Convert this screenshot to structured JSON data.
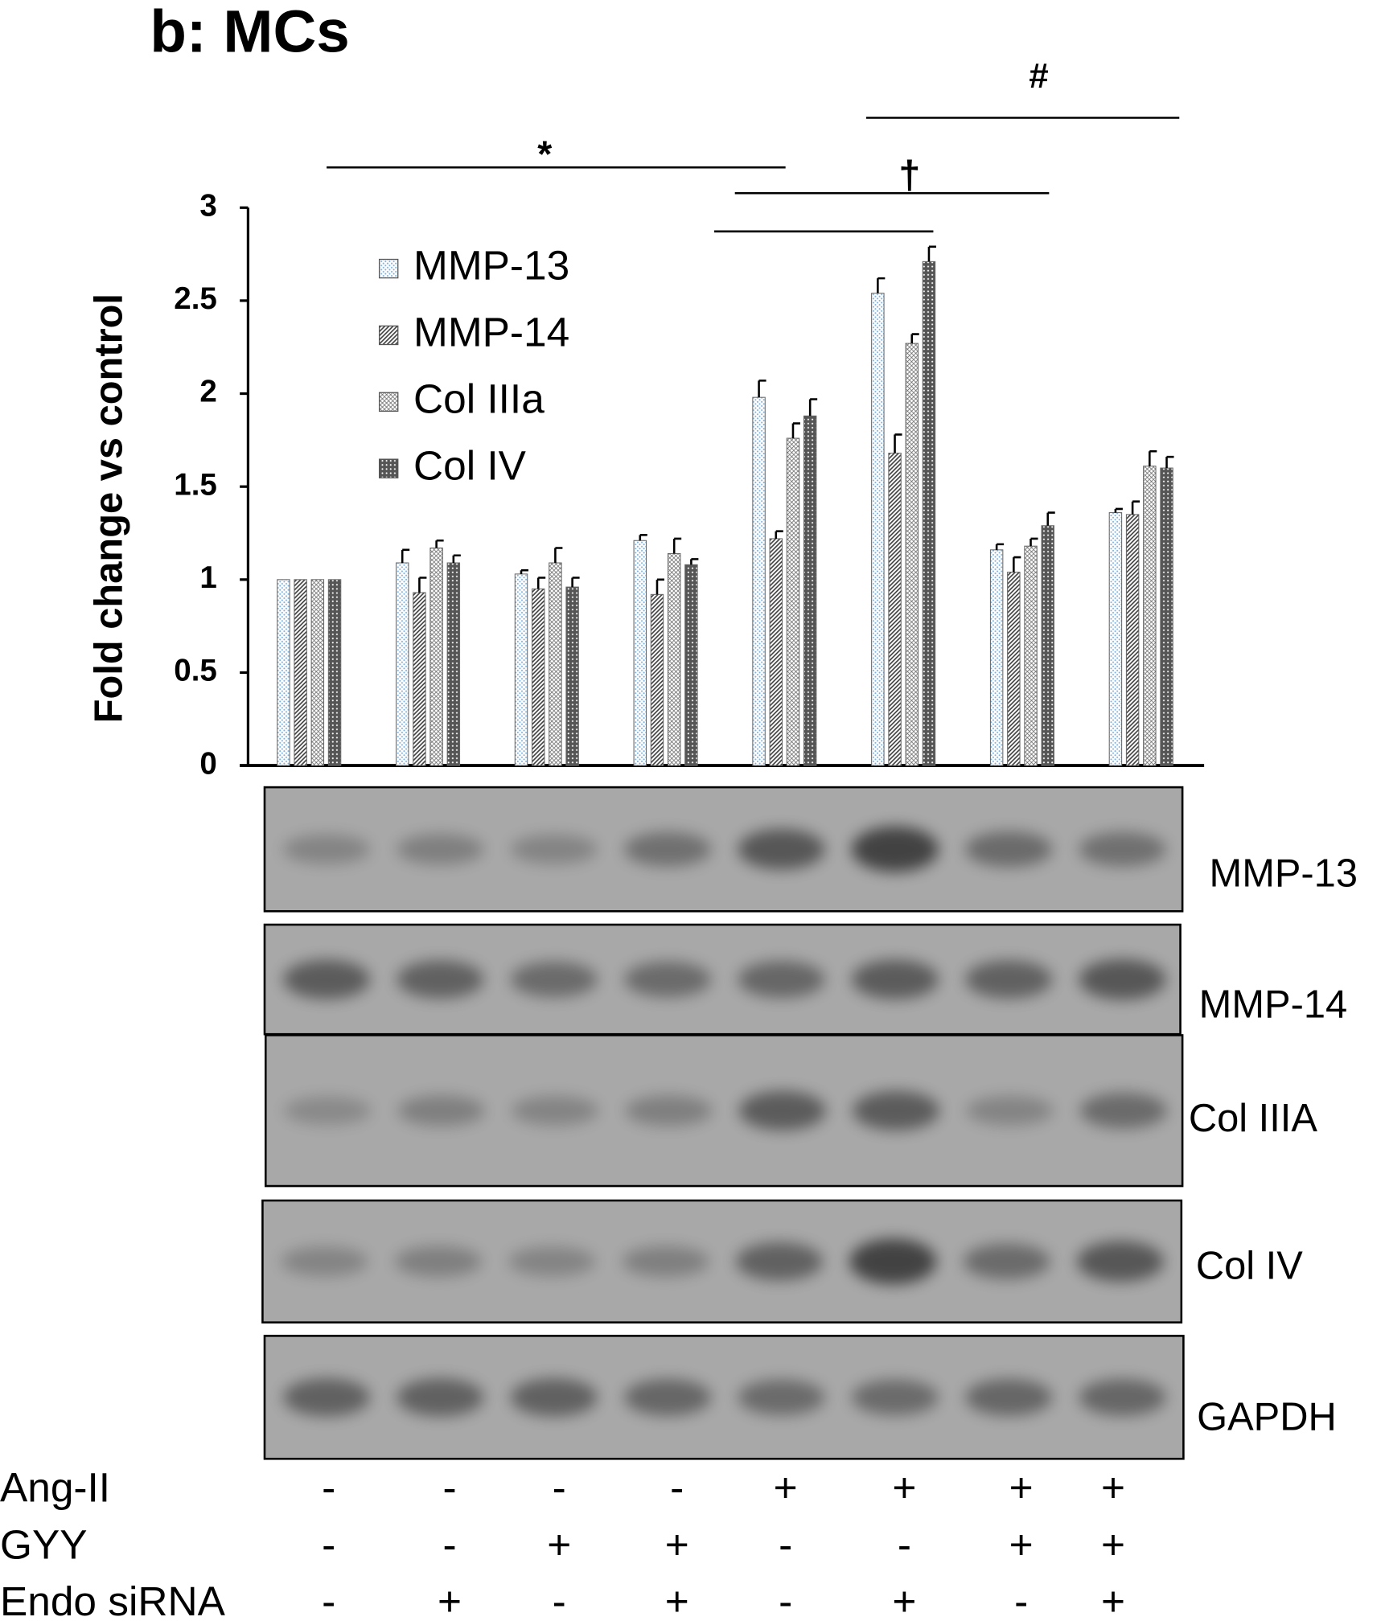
{
  "chart_data": {
    "type": "bar",
    "title": "b: MCs",
    "y_label": "Fold change vs control",
    "categories": [
      null,
      null,
      null,
      null,
      null,
      null,
      null,
      null
    ],
    "ylim": [
      0,
      3
    ],
    "yticks": [
      0,
      0.5,
      1,
      1.5,
      2,
      2.5,
      3
    ],
    "series": [
      {
        "name": "MMP-13",
        "color": "#7fb0dc",
        "pattern": "dots",
        "values": [
          1,
          1.09,
          1.03,
          1.21,
          1.98,
          2.54,
          1.16,
          1.36
        ],
        "errors": [
          0,
          0.07,
          0.02,
          0.03,
          0.09,
          0.08,
          0.03,
          0.02
        ]
      },
      {
        "name": "MMP-14",
        "color": "#404040",
        "pattern": "hatch",
        "values": [
          1,
          0.93,
          0.95,
          0.92,
          1.22,
          1.68,
          1.04,
          1.35
        ],
        "errors": [
          0,
          0.08,
          0.06,
          0.08,
          0.04,
          0.1,
          0.08,
          0.07
        ]
      },
      {
        "name": "Col IIIa",
        "color": "#707070",
        "pattern": "cross",
        "values": [
          1,
          1.17,
          1.09,
          1.14,
          1.76,
          2.27,
          1.18,
          1.61
        ],
        "errors": [
          0,
          0.04,
          0.08,
          0.08,
          0.08,
          0.05,
          0.04,
          0.08
        ]
      },
      {
        "name": "Col IV",
        "color": "#555555",
        "pattern": "dark-dots",
        "values": [
          1,
          1.09,
          0.96,
          1.08,
          1.88,
          2.71,
          1.29,
          1.6
        ],
        "errors": [
          0,
          0.04,
          0.05,
          0.03,
          0.09,
          0.08,
          0.07,
          0.06
        ]
      }
    ],
    "annotations": [
      "*",
      "†",
      "#"
    ],
    "blot_labels": [
      "MMP-13",
      "MMP-14",
      "Col IIIA",
      "Col IV",
      "GAPDH"
    ],
    "treatments": [
      {
        "label": "Ang-II",
        "values": [
          "-",
          "-",
          "-",
          "-",
          "+",
          "+",
          "+",
          "+"
        ]
      },
      {
        "label": "GYY",
        "values": [
          "-",
          "-",
          "+",
          "+",
          "-",
          "-",
          "+",
          "+"
        ]
      },
      {
        "label": "Endo siRNA",
        "values": [
          "-",
          "+",
          "-",
          "+",
          "-",
          "+",
          "-",
          "+"
        ]
      }
    ]
  }
}
